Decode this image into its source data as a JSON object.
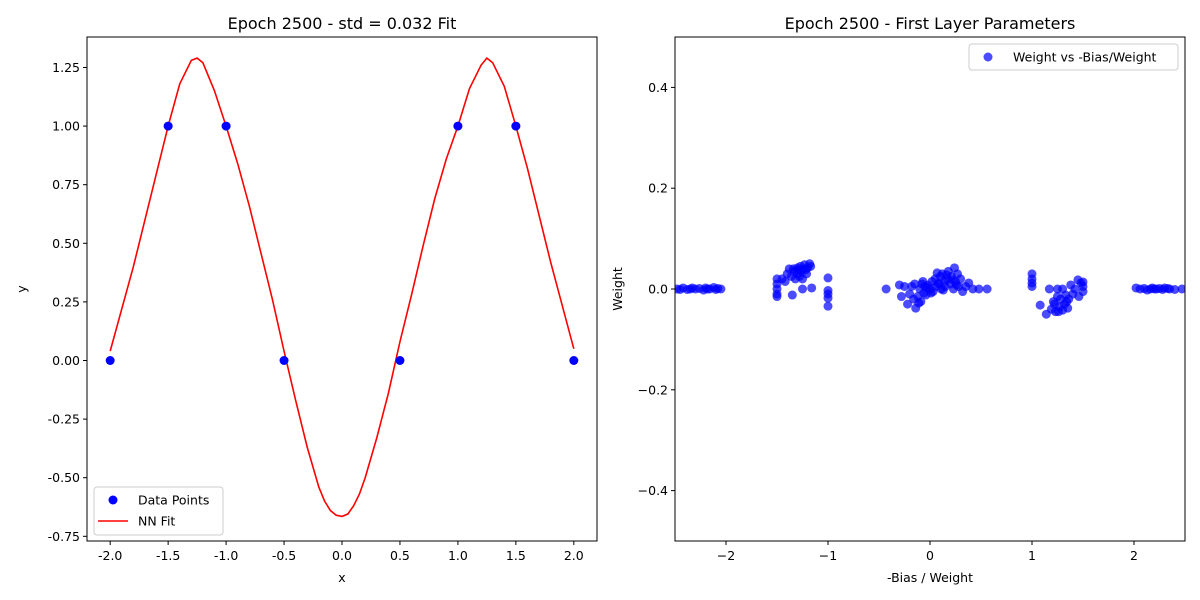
{
  "chart_data": [
    {
      "type": "line",
      "title": "Epoch 2500 - std = 0.032 Fit",
      "xlabel": "x",
      "ylabel": "y",
      "xlim": [
        -2.2,
        2.2
      ],
      "ylim": [
        -0.77,
        1.38
      ],
      "xticks": [
        "-2.0",
        "-1.5",
        "-1.0",
        "-0.5",
        "0.0",
        "0.5",
        "1.0",
        "1.5",
        "2.0"
      ],
      "xtick_values": [
        -2.0,
        -1.5,
        -1.0,
        -0.5,
        0.0,
        0.5,
        1.0,
        1.5,
        2.0
      ],
      "yticks": [
        "-0.75",
        "-0.50",
        "-0.25",
        "0.00",
        "0.25",
        "0.50",
        "0.75",
        "1.00",
        "1.25"
      ],
      "ytick_values": [
        -0.75,
        -0.5,
        -0.25,
        0.0,
        0.25,
        0.5,
        0.75,
        1.0,
        1.25
      ],
      "legend_position": "lower-left",
      "series": [
        {
          "name": "Data Points",
          "kind": "scatter",
          "color": "#0000ff",
          "x": [
            -2.0,
            -1.5,
            -1.0,
            -0.5,
            0.5,
            1.0,
            1.5,
            2.0
          ],
          "y": [
            0.0,
            1.0,
            1.0,
            0.0,
            0.0,
            1.0,
            1.0,
            0.0
          ]
        },
        {
          "name": "NN Fit",
          "kind": "line",
          "color": "#ff0000",
          "x": [
            -2.0,
            -1.8,
            -1.6,
            -1.5,
            -1.4,
            -1.3,
            -1.25,
            -1.2,
            -1.1,
            -1.0,
            -0.9,
            -0.8,
            -0.7,
            -0.6,
            -0.5,
            -0.4,
            -0.3,
            -0.2,
            -0.15,
            -0.1,
            -0.05,
            0.0,
            0.05,
            0.1,
            0.15,
            0.2,
            0.3,
            0.4,
            0.5,
            0.6,
            0.7,
            0.8,
            0.9,
            1.0,
            1.1,
            1.2,
            1.25,
            1.3,
            1.4,
            1.5,
            1.6,
            1.8,
            2.0
          ],
          "y": [
            0.04,
            0.4,
            0.8,
            1.0,
            1.18,
            1.28,
            1.29,
            1.27,
            1.15,
            1.0,
            0.84,
            0.66,
            0.46,
            0.26,
            0.04,
            -0.17,
            -0.37,
            -0.54,
            -0.6,
            -0.64,
            -0.66,
            -0.665,
            -0.655,
            -0.62,
            -0.57,
            -0.5,
            -0.33,
            -0.14,
            0.08,
            0.28,
            0.49,
            0.69,
            0.86,
            1.0,
            1.16,
            1.26,
            1.29,
            1.27,
            1.17,
            1.0,
            0.82,
            0.42,
            0.05
          ]
        }
      ]
    },
    {
      "type": "scatter",
      "title": "Epoch 2500 - First Layer Parameters",
      "xlabel": "-Bias / Weight",
      "ylabel": "Weight",
      "xlim": [
        -2.5,
        2.5
      ],
      "ylim": [
        -0.5,
        0.5
      ],
      "xticks": [
        "−2",
        "−1",
        "0",
        "1",
        "2"
      ],
      "xtick_values": [
        -2,
        -1,
        0,
        1,
        2
      ],
      "yticks": [
        "−0.4",
        "−0.2",
        "0.0",
        "0.2",
        "0.4"
      ],
      "ytick_values": [
        -0.4,
        -0.2,
        0.0,
        0.2,
        0.4
      ],
      "legend_position": "top-right",
      "series": [
        {
          "name": "Weight vs -Bias/Weight",
          "color": "#0000ff",
          "alpha": 0.7,
          "points": [
            [
              -2.48,
              0.0
            ],
            [
              -2.42,
              0.002
            ],
            [
              -2.38,
              -0.001
            ],
            [
              -2.33,
              0.002
            ],
            [
              -2.3,
              0.0
            ],
            [
              -2.26,
              0.001
            ],
            [
              -2.22,
              -0.002
            ],
            [
              -2.2,
              0.002
            ],
            [
              -2.16,
              0.0
            ],
            [
              -2.12,
              0.003
            ],
            [
              -2.1,
              -0.001
            ],
            [
              -2.08,
              0.001
            ],
            [
              -2.05,
              0.0
            ],
            [
              -2.35,
              0.0
            ],
            [
              -2.45,
              -0.001
            ],
            [
              -2.18,
              0.0
            ],
            [
              -1.5,
              0.02
            ],
            [
              -1.5,
              0.01
            ],
            [
              -1.5,
              0.0
            ],
            [
              -1.5,
              -0.01
            ],
            [
              -1.5,
              -0.015
            ],
            [
              -1.45,
              0.02
            ],
            [
              -1.42,
              0.015
            ],
            [
              -1.4,
              0.03
            ],
            [
              -1.38,
              0.04
            ],
            [
              -1.36,
              0.025
            ],
            [
              -1.35,
              -0.012
            ],
            [
              -1.33,
              0.035
            ],
            [
              -1.32,
              0.02
            ],
            [
              -1.3,
              0.042
            ],
            [
              -1.3,
              0.03
            ],
            [
              -1.28,
              0.025
            ],
            [
              -1.27,
              0.045
            ],
            [
              -1.26,
              0.035
            ],
            [
              -1.25,
              0.02
            ],
            [
              -1.25,
              0.0
            ],
            [
              -1.23,
              0.048
            ],
            [
              -1.22,
              0.038
            ],
            [
              -1.21,
              0.03
            ],
            [
              -1.2,
              0.042
            ],
            [
              -1.18,
              0.05
            ],
            [
              -1.17,
              0.045
            ],
            [
              -1.16,
              0.002
            ],
            [
              -1.34,
              0.04
            ],
            [
              -1.29,
              0.038
            ],
            [
              -1.24,
              0.04
            ],
            [
              -1.0,
              0.022
            ],
            [
              -1.0,
              -0.003
            ],
            [
              -1.0,
              -0.01
            ],
            [
              -1.0,
              -0.018
            ],
            [
              -1.0,
              -0.034
            ],
            [
              -0.43,
              0.0
            ],
            [
              -0.3,
              0.008
            ],
            [
              -0.28,
              -0.015
            ],
            [
              -0.25,
              0.005
            ],
            [
              -0.22,
              -0.03
            ],
            [
              -0.2,
              -0.01
            ],
            [
              -0.18,
              0.005
            ],
            [
              -0.16,
              -0.02
            ],
            [
              -0.14,
              -0.038
            ],
            [
              -0.12,
              -0.015
            ],
            [
              -0.1,
              0.0
            ],
            [
              -0.09,
              -0.025
            ],
            [
              -0.08,
              0.01
            ],
            [
              -0.06,
              -0.008
            ],
            [
              -0.05,
              0.005
            ],
            [
              -0.04,
              -0.012
            ],
            [
              -0.02,
              0.008
            ],
            [
              0.0,
              0.0
            ],
            [
              0.02,
              0.015
            ],
            [
              0.03,
              -0.005
            ],
            [
              0.05,
              0.02
            ],
            [
              0.06,
              0.005
            ],
            [
              0.07,
              0.032
            ],
            [
              0.08,
              0.01
            ],
            [
              0.1,
              0.025
            ],
            [
              0.11,
              0.0
            ],
            [
              0.12,
              0.03
            ],
            [
              0.14,
              0.015
            ],
            [
              0.15,
              0.005
            ],
            [
              0.17,
              0.02
            ],
            [
              0.18,
              0.035
            ],
            [
              0.2,
              0.01
            ],
            [
              0.21,
              0.025
            ],
            [
              0.23,
              0.0
            ],
            [
              0.24,
              0.042
            ],
            [
              0.25,
              0.015
            ],
            [
              0.27,
              0.03
            ],
            [
              0.28,
              0.005
            ],
            [
              0.3,
              0.02
            ],
            [
              0.32,
              -0.005
            ],
            [
              0.35,
              0.005
            ],
            [
              0.38,
              0.012
            ],
            [
              0.42,
              0.0
            ],
            [
              0.48,
              0.0
            ],
            [
              0.56,
              0.0
            ],
            [
              -0.11,
              -0.028
            ],
            [
              -0.07,
              0.015
            ],
            [
              0.01,
              -0.008
            ],
            [
              0.09,
              0.012
            ],
            [
              0.16,
              0.028
            ],
            [
              0.22,
              0.018
            ],
            [
              -0.15,
              0.01
            ],
            [
              -0.03,
              0.003
            ],
            [
              0.13,
              -0.002
            ],
            [
              0.26,
              0.008
            ],
            [
              1.0,
              0.03
            ],
            [
              1.0,
              0.02
            ],
            [
              1.0,
              0.012
            ],
            [
              1.0,
              0.005
            ],
            [
              1.08,
              -0.032
            ],
            [
              1.14,
              -0.05
            ],
            [
              1.17,
              0.0
            ],
            [
              1.19,
              -0.04
            ],
            [
              1.21,
              -0.025
            ],
            [
              1.23,
              -0.045
            ],
            [
              1.25,
              -0.015
            ],
            [
              1.25,
              0.0
            ],
            [
              1.27,
              -0.035
            ],
            [
              1.28,
              -0.02
            ],
            [
              1.3,
              -0.042
            ],
            [
              1.3,
              0.0
            ],
            [
              1.32,
              -0.03
            ],
            [
              1.33,
              -0.012
            ],
            [
              1.35,
              -0.038
            ],
            [
              1.36,
              -0.02
            ],
            [
              1.38,
              0.008
            ],
            [
              1.4,
              -0.01
            ],
            [
              1.42,
              0.0
            ],
            [
              1.45,
              0.018
            ],
            [
              1.46,
              -0.015
            ],
            [
              1.48,
              0.012
            ],
            [
              1.5,
              0.005
            ],
            [
              1.5,
              -0.005
            ],
            [
              1.5,
              0.014
            ],
            [
              1.22,
              -0.03
            ],
            [
              1.26,
              -0.045
            ],
            [
              1.34,
              -0.025
            ],
            [
              2.02,
              0.002
            ],
            [
              2.06,
              0.0
            ],
            [
              2.1,
              0.001
            ],
            [
              2.13,
              -0.002
            ],
            [
              2.16,
              0.0
            ],
            [
              2.18,
              0.002
            ],
            [
              2.22,
              0.0
            ],
            [
              2.25,
              0.001
            ],
            [
              2.28,
              -0.001
            ],
            [
              2.3,
              0.002
            ],
            [
              2.35,
              0.0
            ],
            [
              2.4,
              -0.001
            ],
            [
              2.47,
              0.0
            ],
            [
              2.2,
              0.0
            ],
            [
              2.33,
              0.001
            ]
          ]
        }
      ]
    }
  ]
}
